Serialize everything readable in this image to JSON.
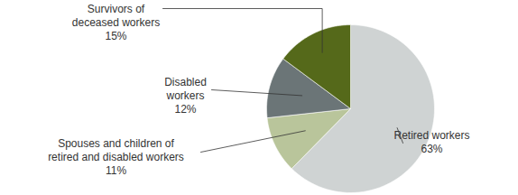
{
  "chart_data": {
    "type": "pie",
    "categories": [
      "Retired workers",
      "Spouses and children of retired and disabled workers",
      "Disabled workers",
      "Survivors of deceased workers"
    ],
    "values": [
      63,
      11,
      12,
      15
    ],
    "value_labels": [
      "63%",
      "11%",
      "12%",
      "15%"
    ],
    "colors": [
      "#cfd3d3",
      "#b9c59b",
      "#6b7577",
      "#55691a"
    ],
    "data_labels": true
  }
}
